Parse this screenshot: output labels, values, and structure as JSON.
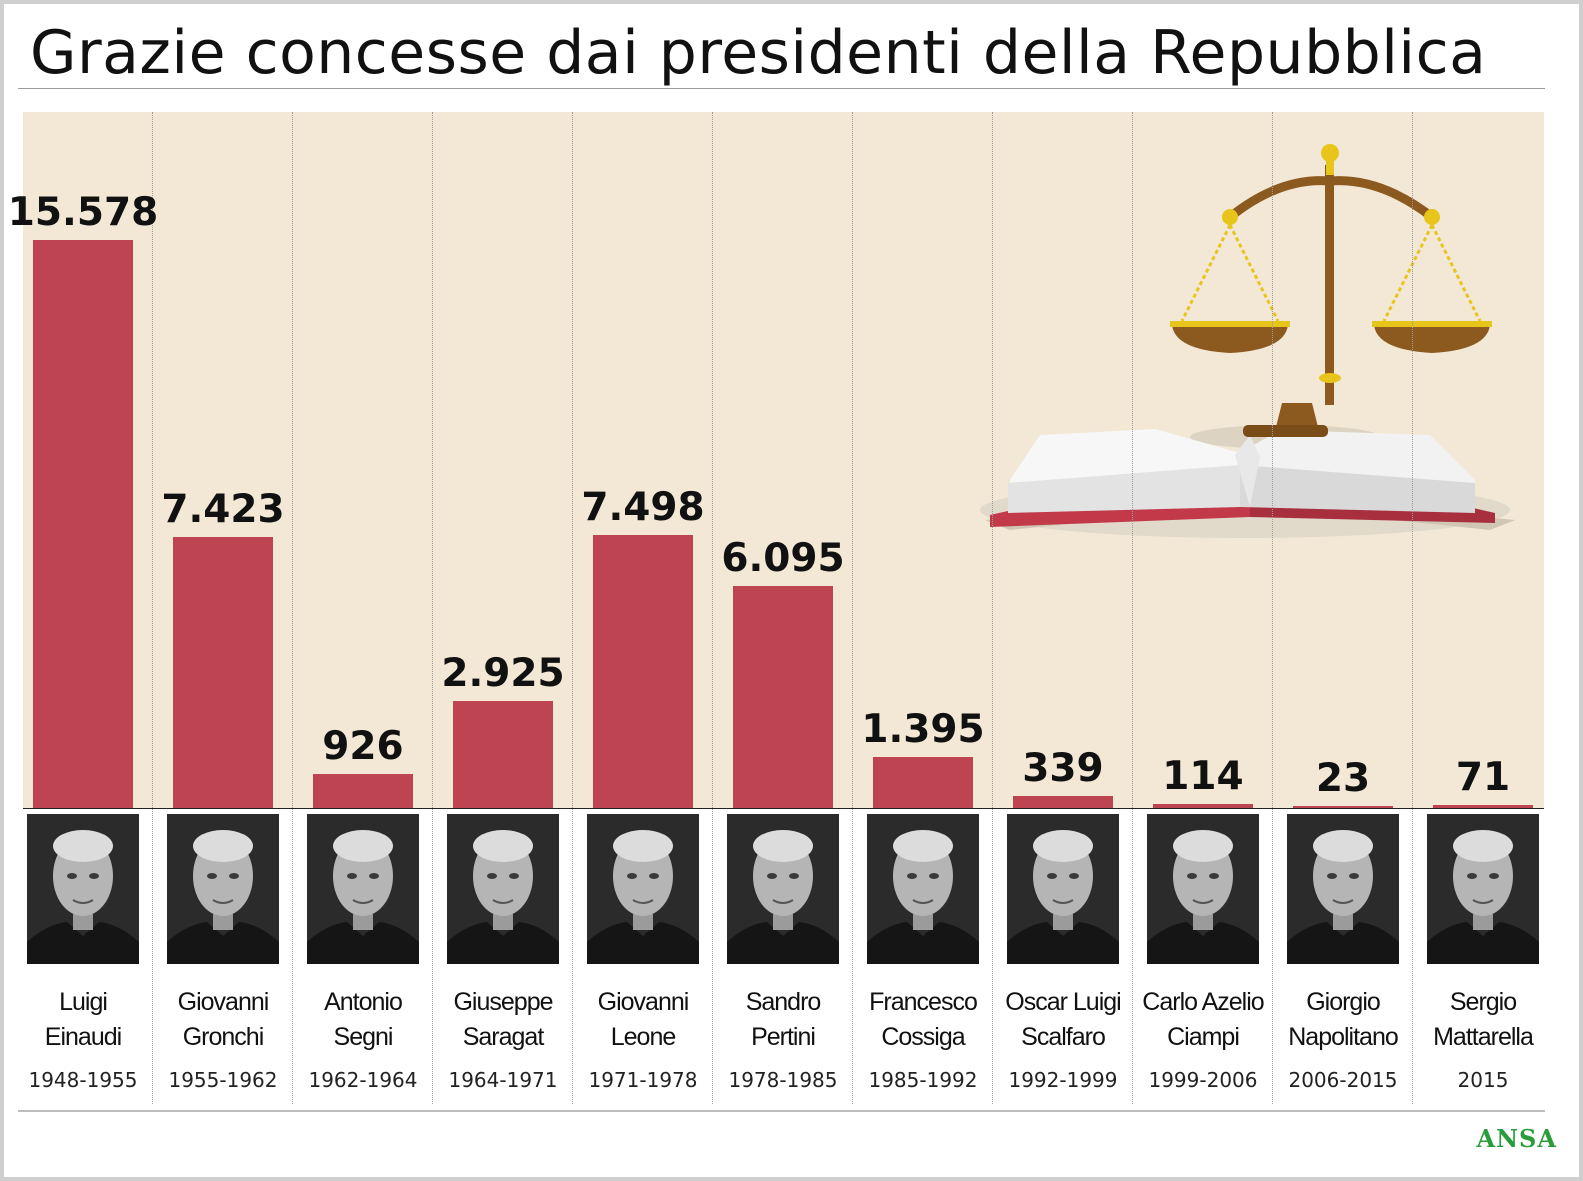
{
  "title": "Grazie concesse dai presidenti della Repubblica",
  "logo": "ANSA",
  "colors": {
    "bar": "#bd4450",
    "plot_background": "#f2e8d5",
    "logo": "#2a9d3a"
  },
  "chart_data": {
    "type": "bar",
    "title": "Grazie concesse dai presidenti della Repubblica",
    "xlabel": "",
    "ylabel": "",
    "ylim": [
      0,
      15578
    ],
    "grid": false,
    "categories": [
      "Luigi Einaudi",
      "Giovanni Gronchi",
      "Antonio Segni",
      "Giuseppe Saragat",
      "Giovanni Leone",
      "Sandro Pertini",
      "Francesco Cossiga",
      "Oscar Luigi Scalfaro",
      "Carlo Azelio Ciampi",
      "Giorgio Napolitano",
      "Sergio Mattarella"
    ],
    "values": [
      15578,
      7423,
      926,
      2925,
      7498,
      6095,
      1395,
      339,
      114,
      23,
      71
    ],
    "presidents": [
      {
        "first": "Luigi",
        "last": "Einaudi",
        "years": "1948-1955",
        "value": 15578,
        "value_label": "15.578"
      },
      {
        "first": "Giovanni",
        "last": "Gronchi",
        "years": "1955-1962",
        "value": 7423,
        "value_label": "7.423"
      },
      {
        "first": "Antonio",
        "last": "Segni",
        "years": "1962-1964",
        "value": 926,
        "value_label": "926"
      },
      {
        "first": "Giuseppe",
        "last": "Saragat",
        "years": "1964-1971",
        "value": 2925,
        "value_label": "2.925"
      },
      {
        "first": "Giovanni",
        "last": "Leone",
        "years": "1971-1978",
        "value": 7498,
        "value_label": "7.498"
      },
      {
        "first": "Sandro",
        "last": "Pertini",
        "years": "1978-1985",
        "value": 6095,
        "value_label": "6.095"
      },
      {
        "first": "Francesco",
        "last": "Cossiga",
        "years": "1985-1992",
        "value": 1395,
        "value_label": "1.395"
      },
      {
        "first": "Oscar Luigi",
        "last": "Scalfaro",
        "years": "1992-1999",
        "value": 339,
        "value_label": "339"
      },
      {
        "first": "Carlo Azelio",
        "last": "Ciampi",
        "years": "1999-2006",
        "value": 114,
        "value_label": "114"
      },
      {
        "first": "Giorgio",
        "last": "Napolitano",
        "years": "2006-2015",
        "value": 23,
        "value_label": "23"
      },
      {
        "first": "Sergio",
        "last": "Mattarella",
        "years": "2015",
        "value": 71,
        "value_label": "71"
      }
    ]
  }
}
